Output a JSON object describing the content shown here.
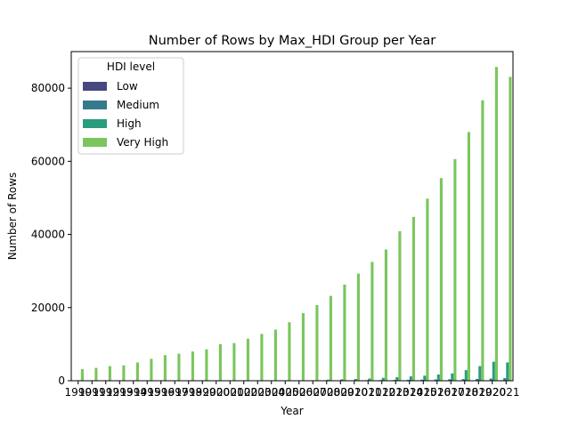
{
  "chart_data": {
    "type": "bar",
    "title": "Number of Rows by Max_HDI Group per Year",
    "xlabel": "Year",
    "ylabel": "Number of Rows",
    "ylim": [
      0,
      90000
    ],
    "yticks": [
      0,
      20000,
      40000,
      60000,
      80000
    ],
    "ytick_labels": [
      "0",
      "20000",
      "40000",
      "60000",
      "80000"
    ],
    "grid": false,
    "legend": {
      "title": "HDI level",
      "placement": "top-left"
    },
    "categories": [
      "1990",
      "1991",
      "1992",
      "1993",
      "1994",
      "1995",
      "1996",
      "1997",
      "1998",
      "1999",
      "2000",
      "2001",
      "2002",
      "2003",
      "2004",
      "2005",
      "2006",
      "2007",
      "2008",
      "2009",
      "2010",
      "2011",
      "2012",
      "2013",
      "2014",
      "2015",
      "2016",
      "2017",
      "2018",
      "2019",
      "2020",
      "2021"
    ],
    "series": [
      {
        "name": "Low",
        "color": "#46497f",
        "values": [
          0,
          0,
          0,
          0,
          0,
          0,
          0,
          0,
          0,
          0,
          0,
          0,
          0,
          0,
          0,
          0,
          0,
          0,
          0,
          0,
          0,
          0,
          0,
          0,
          0,
          0,
          0,
          0,
          0,
          0,
          100,
          150
        ]
      },
      {
        "name": "Medium",
        "color": "#357a8d",
        "values": [
          0,
          0,
          0,
          0,
          0,
          0,
          0,
          0,
          0,
          0,
          0,
          0,
          0,
          0,
          0,
          0,
          0,
          50,
          80,
          100,
          120,
          150,
          180,
          200,
          250,
          300,
          350,
          400,
          450,
          500,
          600,
          700
        ]
      },
      {
        "name": "High",
        "color": "#2b9c7e",
        "values": [
          0,
          0,
          0,
          0,
          0,
          0,
          0,
          0,
          0,
          0,
          0,
          0,
          0,
          0,
          0,
          0,
          0,
          100,
          300,
          400,
          500,
          600,
          800,
          1000,
          1200,
          1400,
          1700,
          2000,
          2900,
          4000,
          5200,
          5000
        ]
      },
      {
        "name": "Very High",
        "color": "#7ac65c",
        "values": [
          3200,
          3500,
          4000,
          4200,
          5000,
          6000,
          7000,
          7400,
          8000,
          8600,
          10000,
          10300,
          11500,
          12800,
          14000,
          16000,
          18500,
          20700,
          23200,
          26300,
          29300,
          32500,
          35900,
          40900,
          44800,
          49800,
          55400,
          60600,
          68000,
          76700,
          85800,
          83100
        ]
      }
    ]
  }
}
